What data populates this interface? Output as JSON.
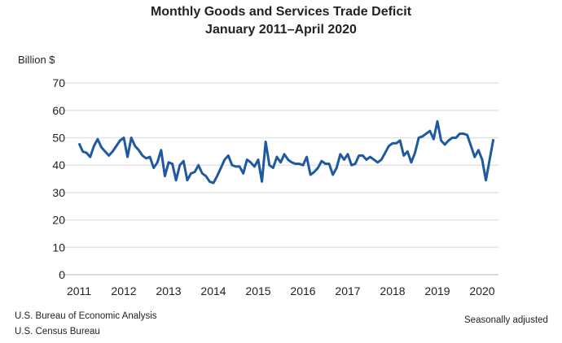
{
  "chart_data": {
    "type": "line",
    "title": "Monthly Goods and Services Trade Deficit",
    "subtitle": "January 2011–April 2020",
    "ylabel": "Billion $",
    "xlabel": "",
    "ylim": [
      0,
      70
    ],
    "yticks": [
      0,
      10,
      20,
      30,
      40,
      50,
      60,
      70
    ],
    "xticks": [
      "2011",
      "2012",
      "2013",
      "2014",
      "2015",
      "2016",
      "2017",
      "2018",
      "2019",
      "2020"
    ],
    "grid": true,
    "color": "#1f5aa0",
    "x_start": "2011-01",
    "x_end": "2020-04",
    "frequency": "monthly",
    "values": [
      48,
      45,
      44.5,
      43,
      47,
      49.5,
      46.5,
      45,
      43.5,
      45,
      47,
      49,
      50,
      43,
      50,
      47,
      45.5,
      43.5,
      42.5,
      43,
      39,
      41,
      45.5,
      36,
      41,
      40.5,
      34.5,
      40,
      41.5,
      34.5,
      37,
      37.5,
      40,
      37,
      36,
      34,
      33.5,
      36,
      39,
      42,
      43.5,
      40,
      39.5,
      39.5,
      37,
      42,
      41,
      39.5,
      42,
      34,
      48.5,
      40,
      39,
      43,
      41,
      44,
      42,
      41,
      40.5,
      40.5,
      40,
      43,
      36.5,
      37.5,
      39,
      41.5,
      40.5,
      40.5,
      36.5,
      39,
      44,
      42,
      44,
      40,
      40.5,
      43.5,
      43.5,
      42,
      43,
      42,
      41,
      42,
      44.5,
      47,
      48,
      48,
      49,
      43.5,
      45,
      41,
      44.5,
      50,
      50.5,
      51.5,
      52.5,
      49.5,
      56,
      49,
      47.5,
      49,
      50,
      50,
      51.5,
      51.5,
      51,
      47,
      43,
      45.5,
      42,
      34.5,
      42,
      49.5
    ]
  },
  "footer": {
    "source_line1": "U.S. Bureau of Economic Analysis",
    "source_line2": "U.S. Census Bureau",
    "note": "Seasonally adjusted"
  }
}
